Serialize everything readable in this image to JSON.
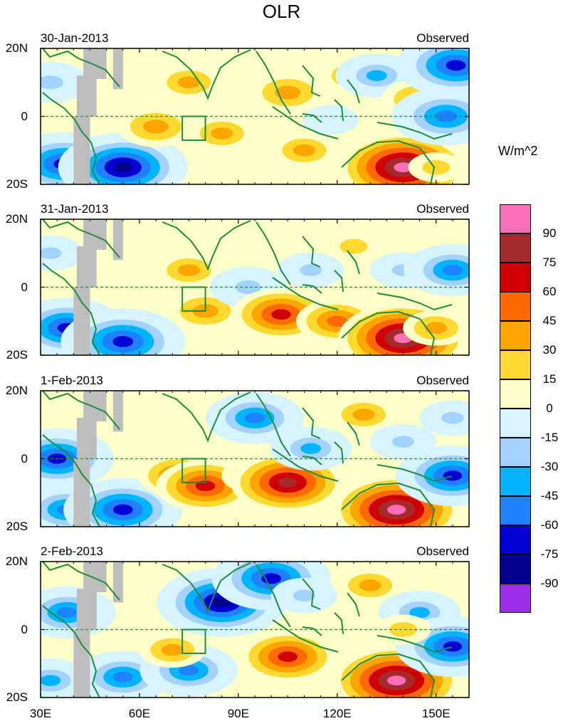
{
  "chart_data": {
    "type": "heatmap",
    "title": "OLR",
    "units": "W/m^2",
    "colorbar": {
      "levels": [
        90,
        75,
        60,
        45,
        30,
        15,
        0,
        -15,
        -30,
        -45,
        -60,
        -75,
        -90
      ],
      "colors": [
        "#f76fb6",
        "#a52a2a",
        "#d10000",
        "#ff6a00",
        "#ffa500",
        "#ffd92f",
        "#ffffc8",
        "#d6f4ff",
        "#a4d2ff",
        "#00b4ff",
        "#1e82ff",
        "#0000d2",
        "#00008c",
        "#9a2de8"
      ]
    },
    "x_ticks": [
      "30E",
      "60E",
      "90E",
      "120E",
      "150E"
    ],
    "x_tick_values": [
      30,
      60,
      90,
      120,
      150
    ],
    "xlim": [
      30,
      160
    ],
    "y_ticks": [
      "20N",
      "0",
      "20S"
    ],
    "y_tick_values": [
      20,
      0,
      -20
    ],
    "ylim": [
      -20,
      20
    ],
    "panels": [
      {
        "date": "30-Jan-2013",
        "label": "Observed",
        "features": [
          {
            "lon": 37,
            "lat": -14,
            "value": -80
          },
          {
            "lon": 33,
            "lat": 10,
            "value": -40
          },
          {
            "lon": 55,
            "lat": -15,
            "value": -90
          },
          {
            "lon": 65,
            "lat": -3,
            "value": 40
          },
          {
            "lon": 75,
            "lat": 10,
            "value": 30
          },
          {
            "lon": 85,
            "lat": -5,
            "value": 30
          },
          {
            "lon": 105,
            "lat": 7,
            "value": 40
          },
          {
            "lon": 110,
            "lat": -10,
            "value": 30
          },
          {
            "lon": 118,
            "lat": -1,
            "value": -20
          },
          {
            "lon": 125,
            "lat": 12,
            "value": 30
          },
          {
            "lon": 132,
            "lat": 12,
            "value": -45
          },
          {
            "lon": 140,
            "lat": -15,
            "value": 90
          },
          {
            "lon": 145,
            "lat": 5,
            "value": 40
          },
          {
            "lon": 153,
            "lat": 0,
            "value": -70
          },
          {
            "lon": 156,
            "lat": 15,
            "value": -80
          },
          {
            "lon": 150,
            "lat": -15,
            "value": 20
          }
        ]
      },
      {
        "date": "31-Jan-2013",
        "label": "Observed",
        "features": [
          {
            "lon": 38,
            "lat": -12,
            "value": -75
          },
          {
            "lon": 33,
            "lat": 10,
            "value": -30
          },
          {
            "lon": 55,
            "lat": -16,
            "value": -85
          },
          {
            "lon": 75,
            "lat": 5,
            "value": 30
          },
          {
            "lon": 80,
            "lat": -7,
            "value": 40
          },
          {
            "lon": 93,
            "lat": 0,
            "value": -40
          },
          {
            "lon": 103,
            "lat": -8,
            "value": 60
          },
          {
            "lon": 112,
            "lat": 5,
            "value": -30
          },
          {
            "lon": 120,
            "lat": -10,
            "value": 45
          },
          {
            "lon": 125,
            "lat": 12,
            "value": 20
          },
          {
            "lon": 140,
            "lat": -15,
            "value": 90
          },
          {
            "lon": 140,
            "lat": 5,
            "value": -30
          },
          {
            "lon": 155,
            "lat": 5,
            "value": -60
          },
          {
            "lon": 150,
            "lat": -12,
            "value": 30
          }
        ]
      },
      {
        "date": "1-Feb-2013",
        "label": "Observed",
        "features": [
          {
            "lon": 35,
            "lat": 0,
            "value": -75
          },
          {
            "lon": 38,
            "lat": -15,
            "value": -60
          },
          {
            "lon": 55,
            "lat": -15,
            "value": -80
          },
          {
            "lon": 72,
            "lat": -5,
            "value": 45
          },
          {
            "lon": 80,
            "lat": -8,
            "value": 60
          },
          {
            "lon": 95,
            "lat": -5,
            "value": 30
          },
          {
            "lon": 105,
            "lat": -7,
            "value": 75
          },
          {
            "lon": 95,
            "lat": 12,
            "value": -60
          },
          {
            "lon": 112,
            "lat": 3,
            "value": -45
          },
          {
            "lon": 128,
            "lat": 13,
            "value": 30
          },
          {
            "lon": 138,
            "lat": -15,
            "value": 90
          },
          {
            "lon": 140,
            "lat": 5,
            "value": -30
          },
          {
            "lon": 155,
            "lat": -5,
            "value": -75
          },
          {
            "lon": 155,
            "lat": 12,
            "value": -30
          }
        ]
      },
      {
        "date": "2-Feb-2013",
        "label": "Observed",
        "features": [
          {
            "lon": 38,
            "lat": 5,
            "value": -60
          },
          {
            "lon": 33,
            "lat": -15,
            "value": -45
          },
          {
            "lon": 55,
            "lat": -14,
            "value": -60
          },
          {
            "lon": 75,
            "lat": -12,
            "value": -60
          },
          {
            "lon": 85,
            "lat": 8,
            "value": -90
          },
          {
            "lon": 100,
            "lat": 15,
            "value": -80
          },
          {
            "lon": 70,
            "lat": -6,
            "value": 30
          },
          {
            "lon": 105,
            "lat": -8,
            "value": 60
          },
          {
            "lon": 110,
            "lat": 10,
            "value": -30
          },
          {
            "lon": 130,
            "lat": 13,
            "value": 30
          },
          {
            "lon": 138,
            "lat": -15,
            "value": 90
          },
          {
            "lon": 145,
            "lat": 5,
            "value": -45
          },
          {
            "lon": 155,
            "lat": -5,
            "value": -75
          },
          {
            "lon": 140,
            "lat": 0,
            "value": 20
          }
        ]
      }
    ]
  }
}
